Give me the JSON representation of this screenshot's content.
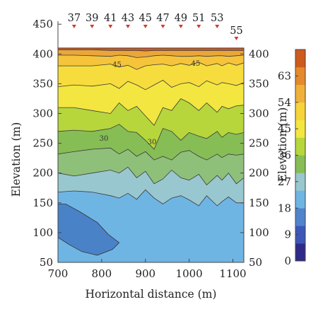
{
  "chart_data": {
    "type": "contour",
    "title": "",
    "xlabel": "Horizontal distance (m)",
    "ylabel": "Elevation (m)",
    "ylabel_right": "Elevation (m)",
    "xlim": [
      700,
      1125
    ],
    "ylim": [
      50,
      455
    ],
    "x_ticks": [
      700,
      800,
      900,
      1000,
      1100
    ],
    "y_ticks_left": [
      50,
      100,
      150,
      200,
      250,
      300,
      350,
      400,
      450
    ],
    "y_ticks_right": [
      50,
      100,
      150,
      200,
      250,
      300,
      350,
      400
    ],
    "ground_surface_elevation": 410,
    "grid": false,
    "colorbar": {
      "placement": "right",
      "min": 0,
      "max": 72,
      "ticks": [
        0,
        9,
        18,
        27,
        36,
        45,
        54,
        63
      ],
      "label": "Elevation (m)",
      "colors": [
        "#2e2a8a",
        "#3e56b8",
        "#4f84cc",
        "#6fb5e4",
        "#98c7cf",
        "#86bd55",
        "#b6d63c",
        "#f3e640",
        "#f6d43a",
        "#f0b13a",
        "#e48a2c",
        "#cf5a1d"
      ]
    },
    "stations": [
      {
        "label": "37",
        "x": 737
      },
      {
        "label": "39",
        "x": 778
      },
      {
        "label": "41",
        "x": 820
      },
      {
        "label": "43",
        "x": 860
      },
      {
        "label": "45",
        "x": 900
      },
      {
        "label": "47",
        "x": 940
      },
      {
        "label": "49",
        "x": 981
      },
      {
        "label": "51",
        "x": 1022
      },
      {
        "label": "53",
        "x": 1064
      },
      {
        "label": "55",
        "x": 1108
      }
    ],
    "contour_labels": [
      {
        "text": "45",
        "x": 835,
        "y": 383
      },
      {
        "text": "45",
        "x": 1015,
        "y": 385
      },
      {
        "text": "30",
        "x": 805,
        "y": 259
      },
      {
        "text": "30",
        "x": 915,
        "y": 253
      }
    ],
    "x_grid": [
      700,
      737,
      778,
      820,
      840,
      860,
      880,
      900,
      920,
      940,
      960,
      981,
      1000,
      1022,
      1040,
      1064,
      1075,
      1090,
      1108,
      1125
    ],
    "contour_lines": [
      {
        "level": 63,
        "y": [
          407,
          407,
          407,
          406,
          406,
          406,
          406,
          405,
          406,
          406,
          406,
          406,
          406,
          406,
          406,
          406,
          406,
          406,
          406,
          406
        ]
      },
      {
        "level": 54,
        "y": [
          398,
          398,
          397,
          396,
          398,
          397,
          394,
          395,
          397,
          398,
          397,
          396,
          396,
          397,
          396,
          397,
          397,
          396,
          397,
          398
        ]
      },
      {
        "level": 45,
        "y": [
          380,
          380,
          380,
          383,
          378,
          381,
          374,
          380,
          382,
          383,
          380,
          384,
          381,
          386,
          380,
          384,
          380,
          385,
          381,
          385
        ]
      },
      {
        "level": 40,
        "y": [
          345,
          348,
          346,
          350,
          342,
          354,
          348,
          340,
          348,
          356,
          344,
          350,
          352,
          345,
          355,
          348,
          352,
          350,
          347,
          352
        ]
      },
      {
        "level": 36,
        "y": [
          310,
          310,
          305,
          300,
          318,
          305,
          312,
          296,
          280,
          310,
          305,
          325,
          318,
          305,
          318,
          302,
          312,
          308,
          313,
          314
        ]
      },
      {
        "level": 30,
        "y": [
          270,
          272,
          270,
          275,
          282,
          270,
          268,
          255,
          240,
          275,
          270,
          255,
          268,
          262,
          258,
          270,
          260,
          268,
          265,
          268
        ]
      },
      {
        "level": 27,
        "y": [
          232,
          236,
          240,
          242,
          232,
          240,
          228,
          236,
          222,
          228,
          222,
          235,
          238,
          228,
          222,
          232,
          226,
          232,
          230,
          232
        ]
      },
      {
        "level": 21,
        "y": [
          200,
          195,
          200,
          205,
          200,
          210,
          192,
          203,
          182,
          190,
          205,
          192,
          188,
          198,
          180,
          196,
          188,
          200,
          182,
          192
        ]
      },
      {
        "level": 18,
        "y": [
          168,
          170,
          168,
          162,
          158,
          166,
          156,
          172,
          158,
          148,
          158,
          162,
          155,
          145,
          162,
          145,
          152,
          160,
          150,
          150
        ]
      }
    ],
    "low_zone": {
      "level": 12,
      "polygon": [
        [
          700,
          148
        ],
        [
          718,
          148
        ],
        [
          750,
          135
        ],
        [
          790,
          117
        ],
        [
          815,
          97
        ],
        [
          840,
          83
        ],
        [
          825,
          72
        ],
        [
          790,
          62
        ],
        [
          755,
          68
        ],
        [
          725,
          80
        ],
        [
          700,
          92
        ]
      ]
    },
    "fills": [
      {
        "below": 18,
        "color": "#6fb5e4"
      },
      {
        "between": [
          18,
          21
        ],
        "color": "#98c7cf"
      },
      {
        "between": [
          21,
          27
        ],
        "color": "#86bd55"
      },
      {
        "between": [
          27,
          30
        ],
        "color": "#6fb04a"
      },
      {
        "between": [
          30,
          36
        ],
        "color": "#b6d63c"
      },
      {
        "between": [
          36,
          40
        ],
        "color": "#f3e640"
      },
      {
        "between": [
          40,
          45
        ],
        "color": "#f7dc3e"
      },
      {
        "between": [
          45,
          54
        ],
        "color": "#f4c13a"
      },
      {
        "between": [
          54,
          63
        ],
        "color": "#eba63a"
      },
      {
        "above": 63,
        "color": "#d2591d"
      }
    ]
  }
}
